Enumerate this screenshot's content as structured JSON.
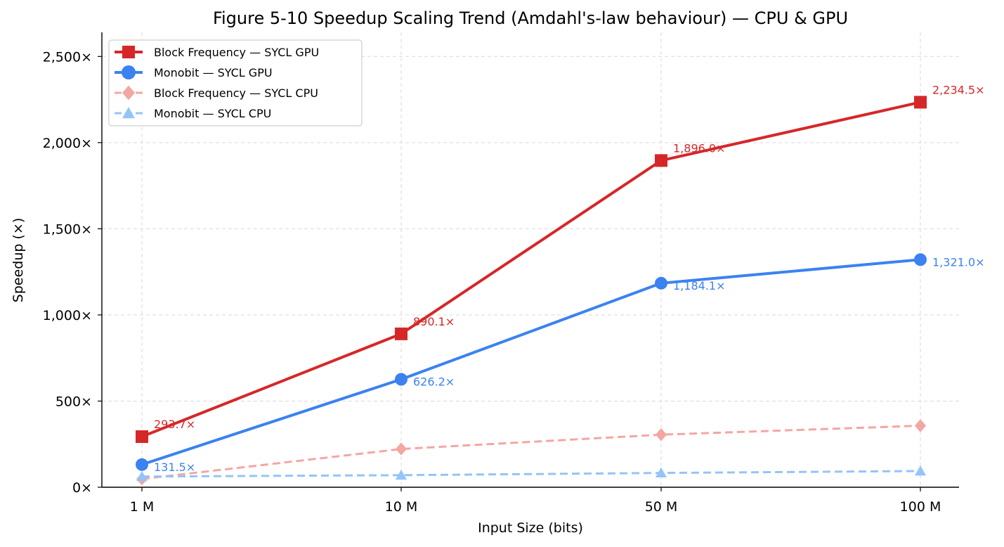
{
  "chart_data": {
    "type": "line",
    "title": "Figure 5-10  Speedup Scaling Trend (Amdahl's-law behaviour) — CPU & GPU",
    "xlabel": "Input Size (bits)",
    "ylabel": "Speedup (×)",
    "categories": [
      "1 M",
      "10 M",
      "50 M",
      "100 M"
    ],
    "ylim": [
      0,
      2640
    ],
    "yticks": [
      0,
      500,
      1000,
      1500,
      2000,
      2500
    ],
    "ytick_labels": [
      "0×",
      "500×",
      "1,000×",
      "1,500×",
      "2,000×",
      "2,500×"
    ],
    "grid": true,
    "legend_position": "upper-left",
    "series": [
      {
        "name": "Block Frequency — SYCL GPU",
        "values": [
          293.7,
          890.1,
          1896.0,
          2234.5
        ],
        "labels": [
          "293.7×",
          "890.1×",
          "1,896.0×",
          "2,234.5×"
        ],
        "color": "#d62728",
        "marker": "square",
        "line_style": "solid"
      },
      {
        "name": "Monobit — SYCL GPU",
        "values": [
          131.5,
          626.2,
          1184.1,
          1321.0
        ],
        "labels": [
          "131.5×",
          "626.2×",
          "1,184.1×",
          "1,321.0×"
        ],
        "color": "#3b82f0",
        "marker": "circle",
        "line_style": "solid"
      },
      {
        "name": "Block Frequency — SYCL CPU",
        "values": [
          48,
          222,
          305,
          357
        ],
        "labels": [],
        "color": "#f4a6a2",
        "marker": "diamond",
        "line_style": "dashed"
      },
      {
        "name": "Monobit — SYCL CPU",
        "values": [
          62,
          70,
          83,
          94
        ],
        "labels": [],
        "color": "#94c4f8",
        "marker": "triangle",
        "line_style": "dashed"
      }
    ]
  }
}
